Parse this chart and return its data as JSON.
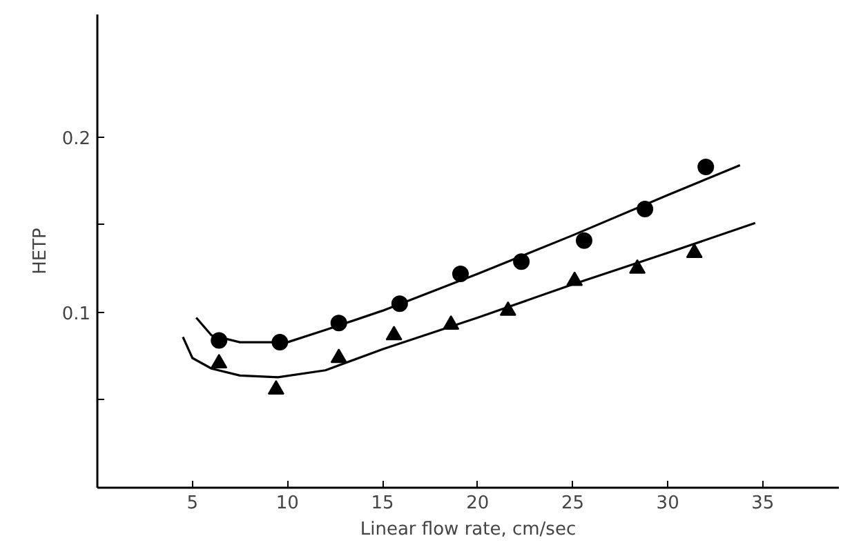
{
  "chart_data": {
    "type": "scatter",
    "xlabel": "Linear flow rate, cm/sec",
    "ylabel": "HETP",
    "xlim": [
      0,
      39
    ],
    "ylim": [
      0,
      0.27
    ],
    "xticks": [
      5,
      10,
      15,
      20,
      25,
      30,
      35
    ],
    "yticks": [
      {
        "value": 0.05,
        "label": null
      },
      {
        "value": 0.1,
        "label": "0.1"
      },
      {
        "value": 0.15,
        "label": null
      },
      {
        "value": 0.2,
        "label": "0.2"
      }
    ],
    "grid": false,
    "series": [
      {
        "marker": "circle",
        "color": "#000000",
        "x": [
          6.4,
          9.6,
          12.7,
          15.9,
          19.1,
          22.3,
          25.6,
          28.8,
          32.0
        ],
        "values": [
          0.084,
          0.083,
          0.094,
          0.105,
          0.122,
          0.129,
          0.141,
          0.159,
          0.183
        ]
      },
      {
        "marker": "triangle",
        "color": "#000000",
        "x": [
          6.4,
          9.4,
          12.7,
          15.6,
          18.6,
          21.6,
          25.1,
          28.4,
          31.4
        ],
        "values": [
          0.071,
          0.056,
          0.074,
          0.087,
          0.093,
          0.101,
          0.118,
          0.125,
          0.134
        ]
      },
      {
        "type": "line",
        "line_style": "solid",
        "color": "#000000",
        "x": [
          5.2,
          6.0,
          7.5,
          10,
          12,
          15,
          20,
          25,
          30,
          33.8
        ],
        "values": [
          0.097,
          0.087,
          0.083,
          0.083,
          0.09,
          0.101,
          0.122,
          0.144,
          0.167,
          0.184
        ]
      },
      {
        "type": "line",
        "line_style": "solid",
        "color": "#000000",
        "x": [
          4.5,
          5,
          6,
          7.5,
          9.5,
          12,
          15,
          20,
          25,
          30,
          34.6
        ],
        "values": [
          0.086,
          0.074,
          0.068,
          0.064,
          0.063,
          0.067,
          0.079,
          0.097,
          0.116,
          0.134,
          0.151
        ]
      }
    ]
  }
}
